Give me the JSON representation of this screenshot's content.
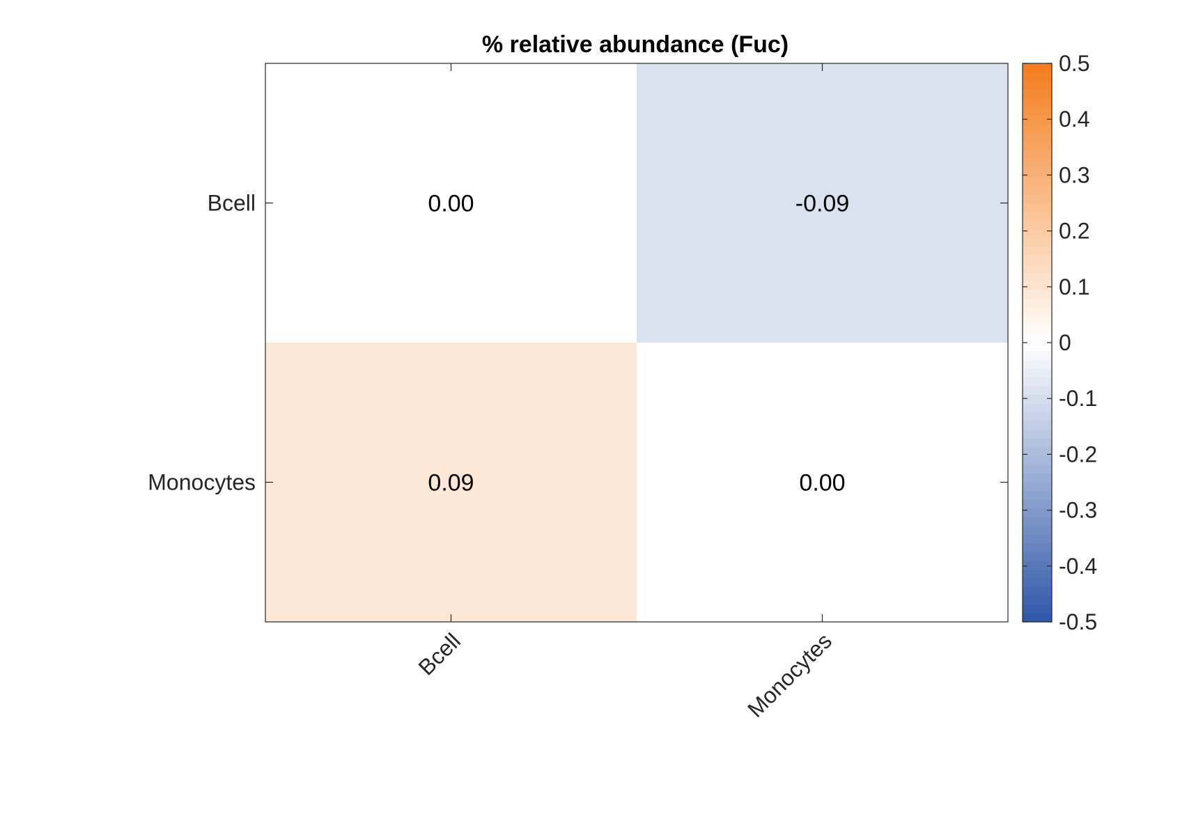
{
  "chart_data": {
    "type": "heatmap",
    "title": "% relative abundance (Fuc)",
    "x_categories": [
      "Bcell",
      "Monocytes"
    ],
    "y_categories": [
      "Bcell",
      "Monocytes"
    ],
    "values": [
      [
        0.0,
        -0.09
      ],
      [
        0.09,
        0.0
      ]
    ],
    "cell_labels": [
      [
        "0.00",
        "-0.09"
      ],
      [
        "0.09",
        "0.00"
      ]
    ],
    "colorbar": {
      "range": [
        -0.5,
        0.5
      ],
      "ticks": [
        "0.5",
        "0.4",
        "0.3",
        "0.2",
        "0.1",
        "0",
        "-0.1",
        "-0.2",
        "-0.3",
        "-0.4",
        "-0.5"
      ],
      "tick_values": [
        0.5,
        0.4,
        0.3,
        0.2,
        0.1,
        0,
        -0.1,
        -0.2,
        -0.3,
        -0.4,
        -0.5
      ],
      "color_low": "#2f56a8",
      "color_mid": "#ffffff",
      "color_high": "#f47c1c"
    },
    "grid": false,
    "xtick_rotation": "45 degrees"
  }
}
